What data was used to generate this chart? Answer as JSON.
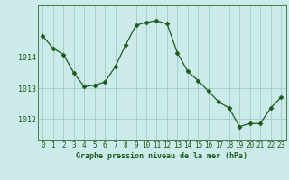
{
  "x": [
    0,
    1,
    2,
    3,
    4,
    5,
    6,
    7,
    8,
    9,
    10,
    11,
    12,
    13,
    14,
    15,
    16,
    17,
    18,
    19,
    20,
    21,
    22,
    23
  ],
  "y": [
    1014.7,
    1014.3,
    1014.1,
    1013.5,
    1013.05,
    1013.1,
    1013.2,
    1013.7,
    1014.4,
    1015.05,
    1015.15,
    1015.2,
    1015.1,
    1014.15,
    1013.55,
    1013.25,
    1012.9,
    1012.55,
    1012.35,
    1011.75,
    1011.85,
    1011.85,
    1012.35,
    1012.7
  ],
  "line_color": "#1a5c1a",
  "marker": "D",
  "marker_size": 2.5,
  "bg_color": "#cceaea",
  "grid_color": "#aacfcf",
  "title": "Graphe pression niveau de la mer (hPa)",
  "ylim_min": 1011.3,
  "ylim_max": 1015.7,
  "yticks": [
    1012,
    1013,
    1014
  ],
  "axis_color": "#4a7a4a",
  "tick_fontsize": 5.5,
  "label_fontsize": 6.0
}
